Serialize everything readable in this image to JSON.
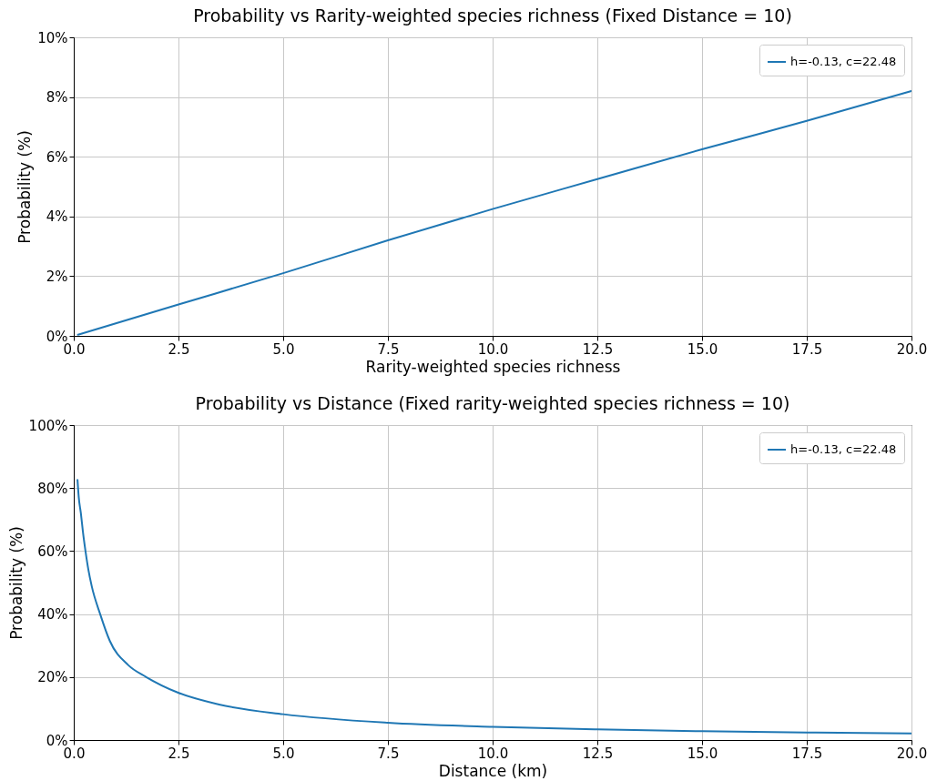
{
  "chart_data": [
    {
      "type": "line",
      "title": "Probability vs Rarity-weighted species richness (Fixed Distance = 10)",
      "xlabel": "Rarity-weighted species richness",
      "ylabel": "Probability (%)",
      "x": [
        0.1,
        2.5,
        5,
        7.5,
        10,
        12.5,
        15,
        17.5,
        20
      ],
      "series": [
        {
          "name": "h=-0.13, c=22.48",
          "color": "#1f77b4",
          "values": [
            0.04,
            1.05,
            2.1,
            3.2,
            4.25,
            5.25,
            6.25,
            7.2,
            8.2
          ]
        }
      ],
      "xlim": [
        0,
        20
      ],
      "ylim": [
        0,
        10
      ],
      "xticks": [
        {
          "value": 0,
          "label": "0.0"
        },
        2.5,
        {
          "value": 5,
          "label": "5.0"
        },
        7.5,
        {
          "value": 10,
          "label": "10.0"
        },
        12.5,
        {
          "value": 15,
          "label": "15.0"
        },
        17.5,
        {
          "value": 20,
          "label": "20.0"
        }
      ],
      "yticks": [
        {
          "value": 0,
          "label": "0%"
        },
        {
          "value": 2,
          "label": "2%"
        },
        {
          "value": 4,
          "label": "4%"
        },
        {
          "value": 6,
          "label": "6%"
        },
        {
          "value": 8,
          "label": "8%"
        },
        {
          "value": 10,
          "label": "10%"
        }
      ],
      "grid": true,
      "legend": "top right"
    },
    {
      "type": "line",
      "title": "Probability vs Distance (Fixed rarity-weighted species richness = 10)",
      "xlabel": "Distance (km)",
      "ylabel": "Probability (%)",
      "x": [
        0.09,
        0.12,
        0.17,
        0.22,
        0.28,
        0.35,
        0.43,
        0.63,
        0.86,
        1.3,
        1.73,
        2.48,
        3.47,
        5,
        7.5,
        10,
        12.5,
        15,
        17.5,
        20
      ],
      "series": [
        {
          "name": "h=-0.13, c=22.48",
          "color": "#1f77b4",
          "values": [
            82.6,
            77,
            72,
            66,
            60,
            54,
            48.8,
            40,
            31.5,
            23.8,
            20,
            15.1,
            11.3,
            8.2,
            5.5,
            4.2,
            3.4,
            2.8,
            2.4,
            2.1
          ]
        }
      ],
      "xlim": [
        0,
        20
      ],
      "ylim": [
        0,
        100
      ],
      "xticks": [
        {
          "value": 0,
          "label": "0.0"
        },
        2.5,
        {
          "value": 5,
          "label": "5.0"
        },
        7.5,
        {
          "value": 10,
          "label": "10.0"
        },
        12.5,
        {
          "value": 15,
          "label": "15.0"
        },
        17.5,
        {
          "value": 20,
          "label": "20.0"
        }
      ],
      "yticks": [
        {
          "value": 0,
          "label": "0%"
        },
        {
          "value": 20,
          "label": "20%"
        },
        {
          "value": 40,
          "label": "40%"
        },
        {
          "value": 60,
          "label": "60%"
        },
        {
          "value": 80,
          "label": "80%"
        },
        {
          "value": 100,
          "label": "100%"
        }
      ],
      "grid": true,
      "legend": "top right"
    }
  ]
}
